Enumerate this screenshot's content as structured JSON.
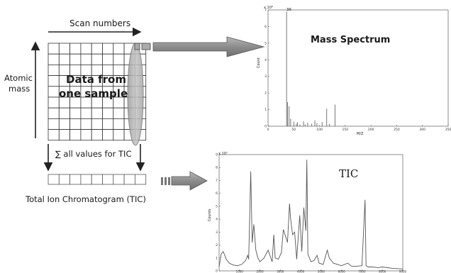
{
  "grid_panel": {
    "scan_numbers_label": "Scan numbers",
    "atomic_mass_label_line1": "Atomic",
    "atomic_mass_label_line2": "mass",
    "data_label_line1": "Data from",
    "data_label_line2": "one sample",
    "sum_label": "∑ all values for TIC",
    "tic_label": "Total Ion Chromatogram (TIC)"
  },
  "mass_spectrum": {
    "title": "Mass Spectrum",
    "xlabel": "M/Z",
    "ylabel": "Count",
    "exponent_label": "x 10⁶",
    "peak_label": "36"
  },
  "tic_chart": {
    "title": "TIC",
    "ylabel": "Counts",
    "exponent_label": "x 10⁷"
  },
  "chart_data": [
    {
      "type": "bar",
      "title": "Mass Spectrum",
      "xlabel": "M/Z",
      "ylabel": "Count",
      "xlim": [
        0,
        350
      ],
      "ylim": [
        0,
        7
      ],
      "x_ticks": [
        "0",
        "50",
        "100",
        "150",
        "200",
        "250",
        "300",
        "350"
      ],
      "y_ticks": [
        "0",
        "1",
        "2",
        "3",
        "4",
        "5",
        "6",
        "7"
      ],
      "x": [
        36,
        38,
        41,
        44,
        50,
        55,
        57,
        62,
        69,
        72,
        77,
        85,
        91,
        95,
        105,
        114,
        119,
        130
      ],
      "values": [
        6.9,
        1.45,
        1.2,
        0.45,
        0.28,
        0.15,
        0.25,
        0.1,
        0.3,
        0.1,
        0.22,
        0.15,
        0.35,
        0.2,
        0.25,
        1.05,
        0.15,
        1.3
      ]
    },
    {
      "type": "line",
      "title": "TIC",
      "ylabel": "Counts",
      "xlim": [
        0,
        9000
      ],
      "ylim": [
        0,
        9
      ],
      "x_ticks": [
        "1000",
        "2000",
        "3000",
        "4000",
        "5000",
        "6000",
        "7000",
        "8000",
        "9000"
      ],
      "y_ticks": [
        "0",
        "1",
        "2",
        "3",
        "4",
        "5",
        "6",
        "7",
        "8",
        "9"
      ],
      "x": [
        0,
        100,
        200,
        350,
        500,
        700,
        900,
        1100,
        1300,
        1400,
        1450,
        1550,
        1620,
        1700,
        1800,
        1900,
        2000,
        2200,
        2400,
        2600,
        2680,
        2750,
        2900,
        3050,
        3150,
        3350,
        3450,
        3500,
        3600,
        3700,
        3800,
        3950,
        4050,
        4150,
        4250,
        4300,
        4350,
        4500,
        4650,
        4800,
        4900,
        5100,
        5300,
        5400,
        5600,
        5800,
        6000,
        6300,
        6500,
        6700,
        7000,
        7150,
        7200,
        7300,
        7500,
        7800,
        8000,
        8500,
        9000
      ],
      "y": [
        0.3,
        1.3,
        1.5,
        0.9,
        0.6,
        0.45,
        0.4,
        0.5,
        0.8,
        1.2,
        0.9,
        7.7,
        2.2,
        3.6,
        1.6,
        1.0,
        0.7,
        1.0,
        1.6,
        0.7,
        2.8,
        1.0,
        0.9,
        1.4,
        3.2,
        2.2,
        5.2,
        4.1,
        2.8,
        3.0,
        0.9,
        4.3,
        1.5,
        4.9,
        3.1,
        8.6,
        1.3,
        0.7,
        0.8,
        1.2,
        0.6,
        0.5,
        1.6,
        1.0,
        0.6,
        0.5,
        0.4,
        0.6,
        0.35,
        0.35,
        0.4,
        5.5,
        0.4,
        0.3,
        0.3,
        0.25,
        0.3,
        0.2,
        0.15
      ]
    }
  ]
}
